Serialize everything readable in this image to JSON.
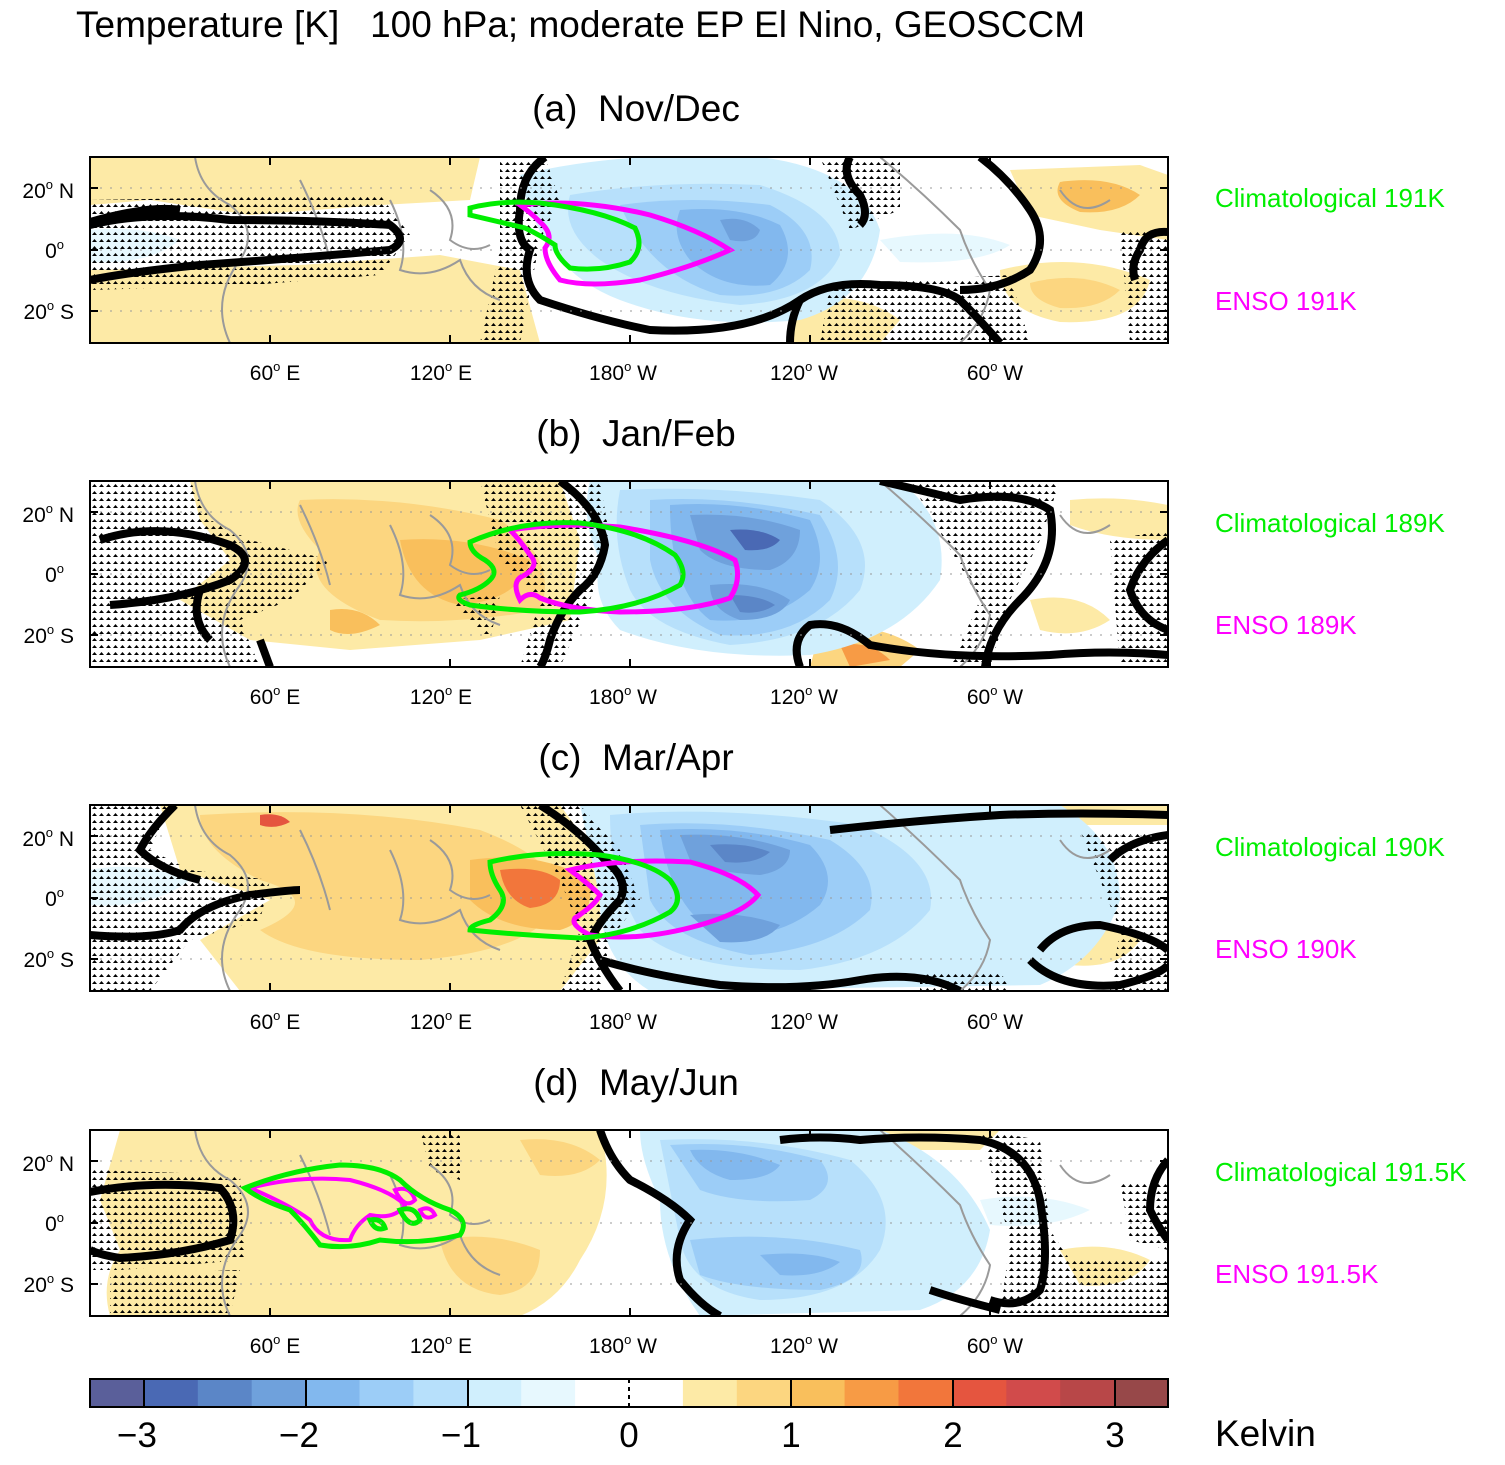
{
  "figure": {
    "title": "Temperature [K]   100 hPa; moderate EP El Nino, GEOSCCM"
  },
  "lat_labels": [
    "20",
    "N",
    "0",
    "",
    "20",
    "S"
  ],
  "lon_labels": [
    {
      "deg": "60",
      "hem": "E"
    },
    {
      "deg": "120",
      "hem": "E"
    },
    {
      "deg": "180",
      "hem": "W"
    },
    {
      "deg": "120",
      "hem": "W"
    },
    {
      "deg": "60",
      "hem": "W"
    }
  ],
  "panels": [
    {
      "title": "(a)  Nov/Dec",
      "legend_clim": "Climatological 191K",
      "legend_enso": "ENSO 191K"
    },
    {
      "title": "(b)  Jan/Feb",
      "legend_clim": "Climatological 189K",
      "legend_enso": "ENSO 189K"
    },
    {
      "title": "(c)  Mar/Apr",
      "legend_clim": "Climatological 190K",
      "legend_enso": "ENSO 190K"
    },
    {
      "title": "(d)  May/Jun",
      "legend_clim": "Climatological 191.5K",
      "legend_enso": "ENSO 191.5K"
    }
  ],
  "colorbar": {
    "unit": "Kelvin",
    "tick_labels": [
      "−3",
      "−2",
      "−1",
      "0",
      "1",
      "2",
      "3"
    ],
    "colors": [
      "#5a5f9a",
      "#4a69b4",
      "#5b86c7",
      "#6fa1dc",
      "#82b8ee",
      "#9ccdf7",
      "#b7e0fb",
      "#d0effd",
      "#e7f8fe",
      "#ffffff",
      "#ffffff",
      "#fdeaa6",
      "#fcd680",
      "#f9bf5c",
      "#f79b45",
      "#f2763b",
      "#e5553f",
      "#d14b4b",
      "#b84748",
      "#974849"
    ]
  },
  "line_colors": {
    "climatological": "#00ee00",
    "enso": "#ff00ff",
    "zero_contour": "#000000",
    "coast": "#9a9a9a"
  }
}
